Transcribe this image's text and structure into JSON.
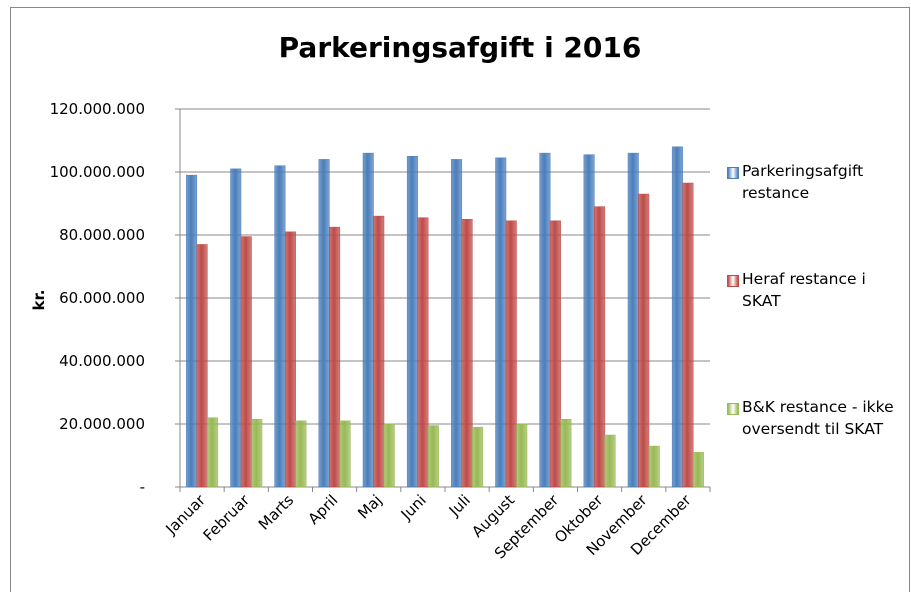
{
  "chart_data": {
    "type": "bar",
    "title": "Parkeringsafgift i 2016",
    "y_label": "kr.",
    "categories": [
      "Januar",
      "Februar",
      "Marts",
      "April",
      "Maj",
      "Juni",
      "Juli",
      "August",
      "September",
      "Oktober",
      "November",
      "December"
    ],
    "series": [
      {
        "name": "Parkeringsafgift restance",
        "color": "#4a7ebb",
        "values": [
          99000000,
          101000000,
          102000000,
          104000000,
          106000000,
          105000000,
          104000000,
          104500000,
          106000000,
          105500000,
          106000000,
          108000000
        ]
      },
      {
        "name": "Heraf restance i SKAT",
        "color": "#be4b48",
        "values": [
          77000000,
          79500000,
          81000000,
          82500000,
          86000000,
          85500000,
          85000000,
          84500000,
          84500000,
          89000000,
          93000000,
          96500000
        ]
      },
      {
        "name": "B&K restance - ikke oversendt til SKAT",
        "color": "#98b954",
        "values": [
          22000000,
          21500000,
          21000000,
          21000000,
          20000000,
          19500000,
          19000000,
          20000000,
          21500000,
          16500000,
          13000000,
          11000000
        ]
      }
    ],
    "ylim": [
      0,
      120000000
    ],
    "yticks": [
      {
        "value": 0,
        "label": "-"
      },
      {
        "value": 20000000,
        "label": "20.000.000"
      },
      {
        "value": 40000000,
        "label": "40.000.000"
      },
      {
        "value": 60000000,
        "label": "60.000.000"
      },
      {
        "value": 80000000,
        "label": "80.000.000"
      },
      {
        "value": 100000000,
        "label": "100.000.000"
      },
      {
        "value": 120000000,
        "label": "120.000.000"
      }
    ],
    "grid": true,
    "legend": "right"
  }
}
